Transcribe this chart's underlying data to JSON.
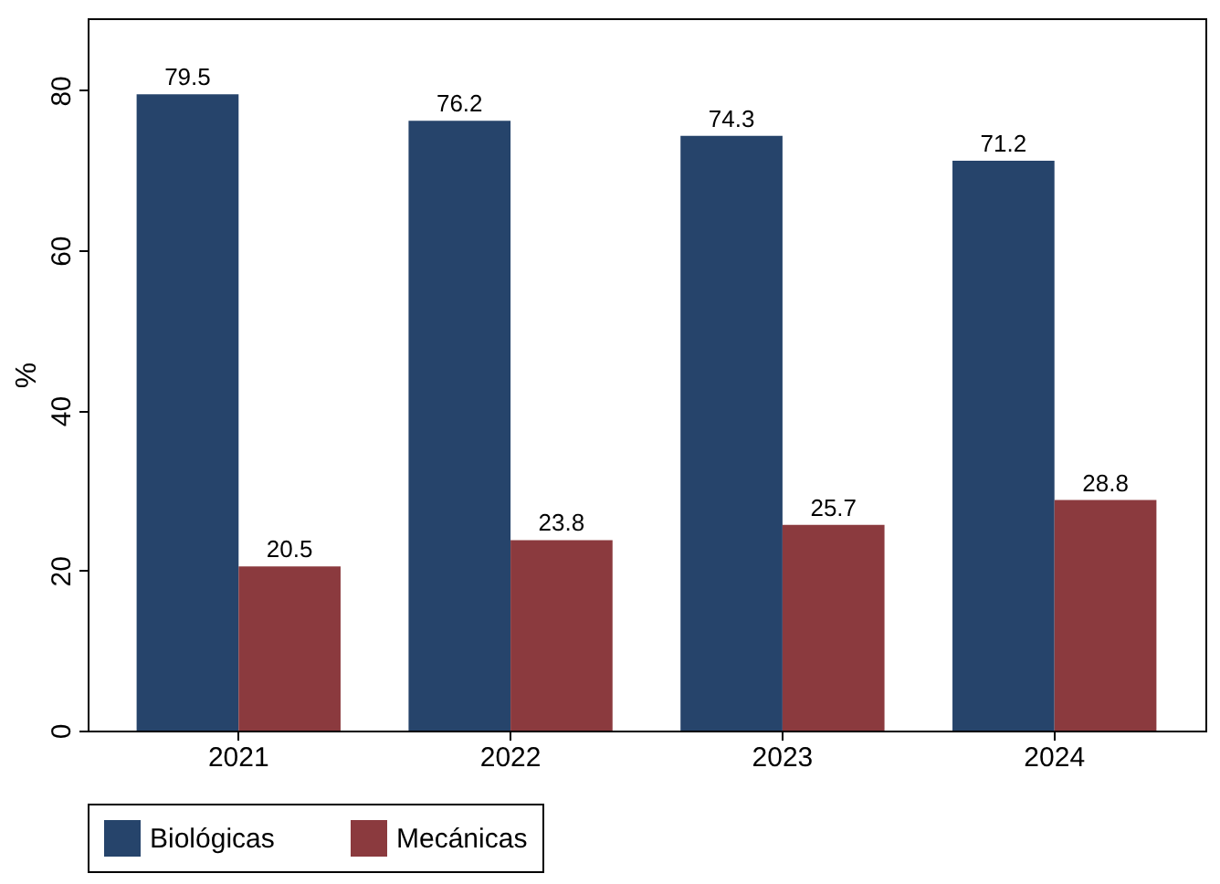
{
  "chart_data": {
    "type": "bar",
    "categories": [
      "2021",
      "2022",
      "2023",
      "2024"
    ],
    "series": [
      {
        "name": "Biológicas",
        "color": "#26446b",
        "values": [
          79.5,
          76.2,
          74.3,
          71.2
        ]
      },
      {
        "name": "Mecánicas",
        "color": "#8b3a3e",
        "values": [
          20.5,
          23.8,
          25.7,
          28.8
        ]
      }
    ],
    "ylabel": "%",
    "ylim": [
      0,
      89
    ],
    "yticks": [
      0,
      20,
      40,
      60,
      80
    ],
    "data_labels": true,
    "legend": "bottom",
    "grid": false
  }
}
